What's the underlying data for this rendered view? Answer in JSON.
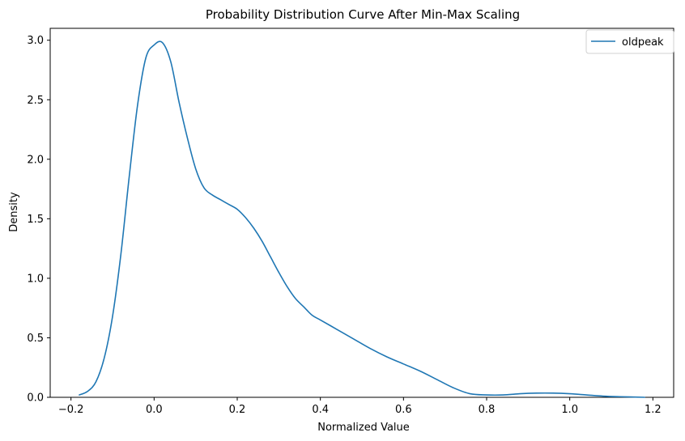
{
  "chart_data": {
    "type": "line",
    "title": "Probability Distribution Curve After Min-Max Scaling",
    "xlabel": "Normalized Value",
    "ylabel": "Density",
    "xlim": [
      -0.25,
      1.25
    ],
    "ylim": [
      0,
      3.1
    ],
    "x_ticks": [
      -0.2,
      0.0,
      0.2,
      0.4,
      0.6,
      0.8,
      1.0,
      1.2
    ],
    "x_tick_labels": [
      "−0.2",
      "0.0",
      "0.2",
      "0.4",
      "0.6",
      "0.8",
      "1.0",
      "1.2"
    ],
    "y_ticks": [
      0.0,
      0.5,
      1.0,
      1.5,
      2.0,
      2.5,
      3.0
    ],
    "y_tick_labels": [
      "0.0",
      "0.5",
      "1.0",
      "1.5",
      "2.0",
      "2.5",
      "3.0"
    ],
    "grid": false,
    "legend_position": "top-right",
    "series": [
      {
        "name": "oldpeak",
        "color": "#1f77b4",
        "x": [
          -0.18,
          -0.16,
          -0.14,
          -0.12,
          -0.1,
          -0.08,
          -0.06,
          -0.04,
          -0.02,
          0.0,
          0.02,
          0.04,
          0.06,
          0.08,
          0.1,
          0.12,
          0.14,
          0.16,
          0.18,
          0.2,
          0.22,
          0.24,
          0.26,
          0.28,
          0.3,
          0.32,
          0.34,
          0.36,
          0.38,
          0.4,
          0.44,
          0.48,
          0.52,
          0.56,
          0.6,
          0.64,
          0.68,
          0.72,
          0.76,
          0.8,
          0.84,
          0.88,
          0.92,
          0.96,
          1.0,
          1.04,
          1.08,
          1.12,
          1.18
        ],
        "y": [
          0.02,
          0.05,
          0.13,
          0.33,
          0.68,
          1.2,
          1.85,
          2.45,
          2.85,
          2.96,
          2.98,
          2.82,
          2.48,
          2.18,
          1.92,
          1.76,
          1.7,
          1.66,
          1.62,
          1.58,
          1.51,
          1.42,
          1.31,
          1.18,
          1.05,
          0.93,
          0.83,
          0.76,
          0.69,
          0.65,
          0.57,
          0.49,
          0.41,
          0.34,
          0.28,
          0.22,
          0.15,
          0.08,
          0.03,
          0.02,
          0.02,
          0.03,
          0.035,
          0.035,
          0.03,
          0.02,
          0.01,
          0.005,
          0.0
        ]
      }
    ]
  }
}
